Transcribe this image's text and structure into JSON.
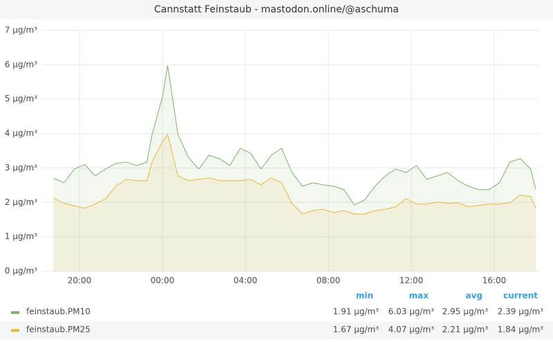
{
  "chart_data": {
    "type": "line",
    "title": "Cannstatt Feinstaub - mastodon.online/@aschuma",
    "x": [
      18.75,
      19.25,
      19.75,
      20.25,
      20.75,
      21.25,
      21.75,
      22.25,
      22.75,
      23.25,
      23.5,
      24.0,
      24.25,
      24.75,
      25.25,
      25.75,
      26.25,
      26.75,
      27.25,
      27.75,
      28.25,
      28.75,
      29.25,
      29.75,
      30.25,
      30.75,
      31.25,
      31.75,
      32.25,
      32.75,
      33.25,
      33.75,
      34.25,
      34.75,
      35.25,
      35.75,
      36.25,
      36.75,
      37.25,
      37.75,
      38.25,
      38.75,
      39.25,
      39.75,
      40.25,
      40.75,
      41.25,
      41.75,
      42.0
    ],
    "series": [
      {
        "name": "feinstaub.PM10",
        "color": "#7eb26d",
        "values": [
          2.7,
          2.57,
          2.97,
          3.1,
          2.77,
          2.97,
          3.13,
          3.17,
          3.07,
          3.17,
          3.97,
          5.07,
          5.98,
          3.97,
          3.31,
          2.97,
          3.37,
          3.27,
          3.07,
          3.57,
          3.43,
          2.97,
          3.37,
          3.57,
          2.87,
          2.47,
          2.57,
          2.51,
          2.47,
          2.37,
          1.93,
          2.07,
          2.47,
          2.77,
          2.97,
          2.87,
          3.07,
          2.67,
          2.77,
          2.87,
          2.63,
          2.47,
          2.37,
          2.37,
          2.57,
          3.17,
          3.27,
          2.97,
          2.39
        ],
        "stats": [
          "1.91 µg/m³",
          "6.03 µg/m³",
          "2.95 µg/m³",
          "2.39 µg/m³"
        ]
      },
      {
        "name": "feinstaub.PM25",
        "color": "#eab839",
        "values": [
          2.13,
          1.97,
          1.9,
          1.83,
          1.95,
          2.1,
          2.47,
          2.67,
          2.63,
          2.63,
          3.17,
          3.77,
          3.97,
          2.77,
          2.63,
          2.67,
          2.71,
          2.63,
          2.63,
          2.63,
          2.67,
          2.51,
          2.71,
          2.57,
          1.97,
          1.66,
          1.76,
          1.8,
          1.7,
          1.76,
          1.66,
          1.66,
          1.76,
          1.8,
          1.87,
          2.11,
          1.95,
          1.95,
          2.01,
          1.97,
          1.99,
          1.87,
          1.91,
          1.95,
          1.95,
          1.99,
          2.21,
          2.17,
          1.84
        ],
        "stats": [
          "1.67 µg/m³",
          "4.07 µg/m³",
          "2.21 µg/m³",
          "1.84 µg/m³"
        ]
      }
    ],
    "legend_columns": [
      "min",
      "max",
      "avg",
      "current"
    ],
    "xlim": [
      18.75,
      42.0
    ],
    "xticks": [
      {
        "value": 20,
        "label": "20:00"
      },
      {
        "value": 24,
        "label": "00:00"
      },
      {
        "value": 28,
        "label": "04:00"
      },
      {
        "value": 32,
        "label": "08:00"
      },
      {
        "value": 36,
        "label": "12:00"
      },
      {
        "value": 40,
        "label": "16:00"
      }
    ],
    "ylim": [
      0,
      7
    ],
    "yticks": [
      {
        "value": 0,
        "label": "0 µg/m³"
      },
      {
        "value": 1,
        "label": "1 µg/m³"
      },
      {
        "value": 2,
        "label": "2 µg/m³"
      },
      {
        "value": 3,
        "label": "3 µg/m³"
      },
      {
        "value": 4,
        "label": "4 µg/m³"
      },
      {
        "value": 5,
        "label": "5 µg/m³"
      },
      {
        "value": 6,
        "label": "6 µg/m³"
      },
      {
        "value": 7,
        "label": "7 µg/m³"
      }
    ],
    "grid": true,
    "fill_opacity": 0.1
  }
}
